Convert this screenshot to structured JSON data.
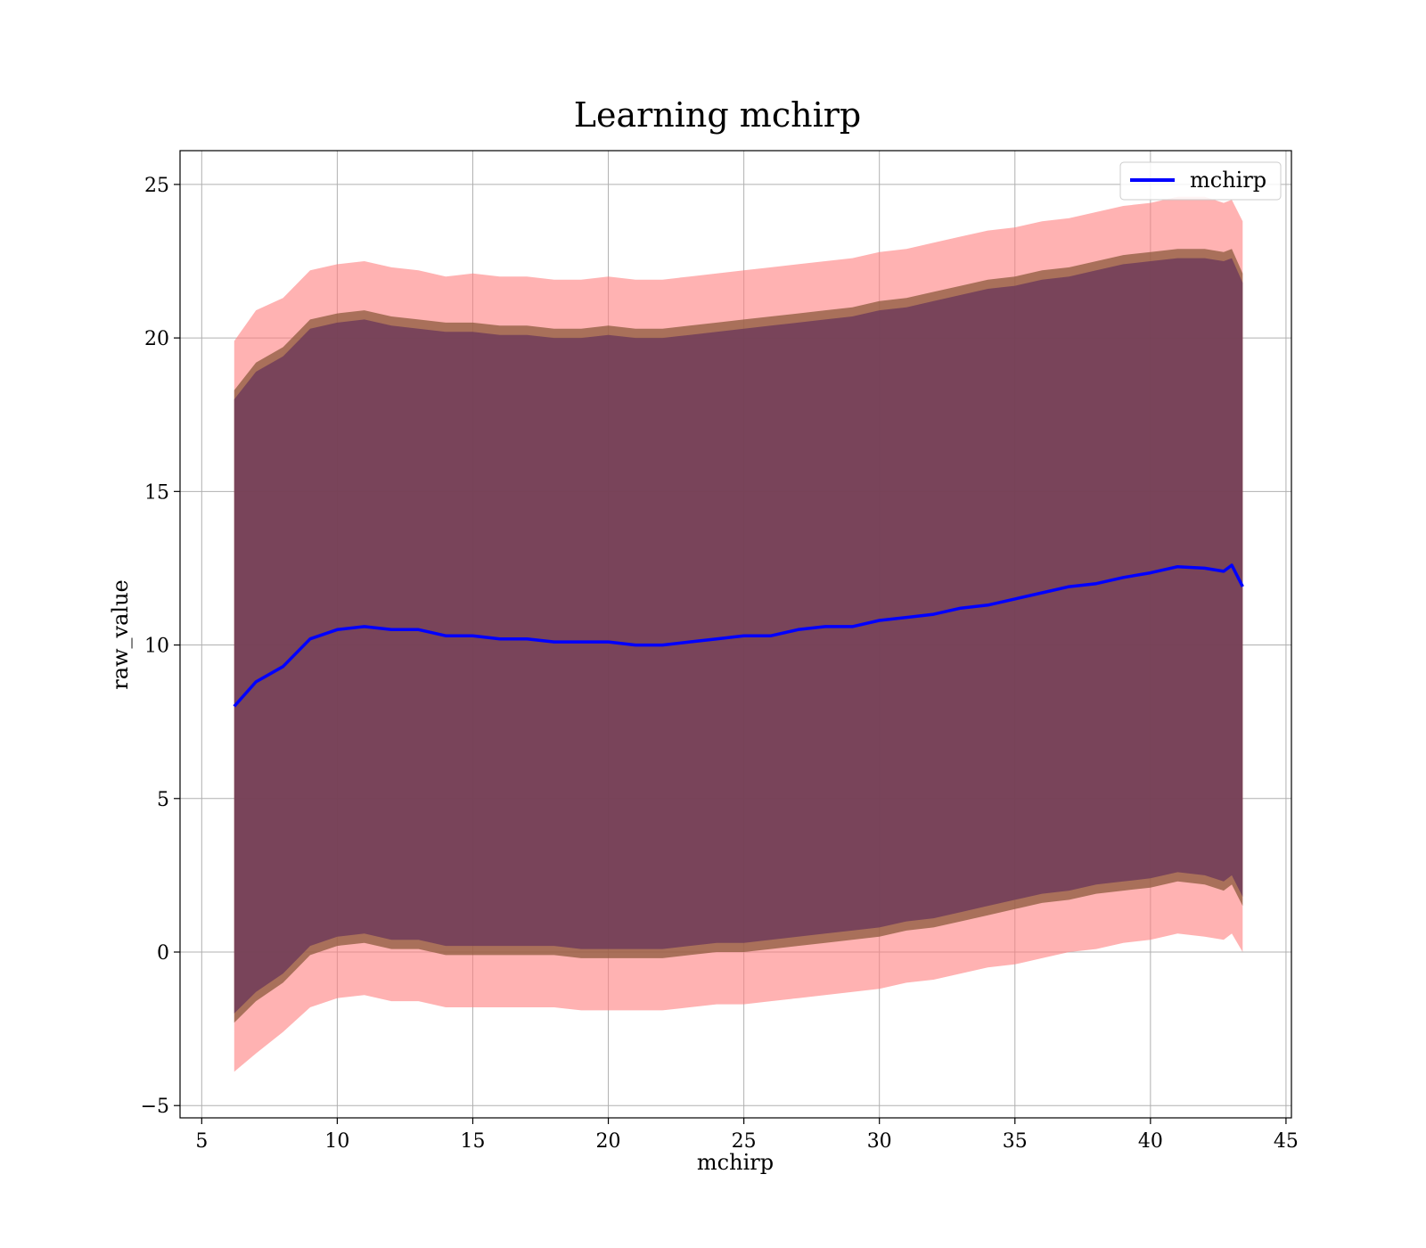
{
  "chart_data": {
    "type": "area",
    "title": "Learning mchirp",
    "xlabel": "mchirp",
    "ylabel": "raw_value",
    "xlim": [
      4.2,
      45.2
    ],
    "ylim": [
      -5.4,
      26.1
    ],
    "xticks": [
      5,
      10,
      15,
      20,
      25,
      30,
      35,
      40,
      45
    ],
    "xtick_labels": [
      "5",
      "10",
      "15",
      "20",
      "25",
      "30",
      "35",
      "40",
      "45"
    ],
    "yticks": [
      -5,
      0,
      5,
      10,
      15,
      20,
      25
    ],
    "ytick_labels": [
      "−5",
      "0",
      "5",
      "10",
      "15",
      "20",
      "25"
    ],
    "grid": true,
    "legend_position": "top-right",
    "legend": [
      "mchirp"
    ],
    "x": [
      6.2,
      7,
      8,
      9,
      10,
      11,
      12,
      13,
      14,
      15,
      16,
      17,
      18,
      19,
      20,
      21,
      22,
      23,
      24,
      25,
      26,
      27,
      28,
      29,
      30,
      31,
      32,
      33,
      34,
      35,
      36,
      37,
      38,
      39,
      40,
      41,
      42,
      42.7,
      43,
      43.4
    ],
    "series": [
      {
        "name": "mchirp",
        "color": "#0000ff",
        "values": [
          8.0,
          8.8,
          9.3,
          10.2,
          10.5,
          10.6,
          10.5,
          10.5,
          10.3,
          10.3,
          10.2,
          10.2,
          10.1,
          10.1,
          10.1,
          10.0,
          10.0,
          10.1,
          10.2,
          10.3,
          10.3,
          10.5,
          10.6,
          10.6,
          10.8,
          10.9,
          11.0,
          11.2,
          11.3,
          11.5,
          11.7,
          11.9,
          12.0,
          12.2,
          12.35,
          12.55,
          12.5,
          12.4,
          12.6,
          11.9
        ]
      }
    ],
    "bands": [
      {
        "level": "outer",
        "color": "#ff7f7f",
        "upper": [
          19.9,
          20.9,
          21.3,
          22.2,
          22.4,
          22.5,
          22.3,
          22.2,
          22.0,
          22.1,
          22.0,
          22.0,
          21.9,
          21.9,
          22.0,
          21.9,
          21.9,
          22.0,
          22.1,
          22.2,
          22.3,
          22.4,
          22.5,
          22.6,
          22.8,
          22.9,
          23.1,
          23.3,
          23.5,
          23.6,
          23.8,
          23.9,
          24.1,
          24.3,
          24.4,
          24.6,
          24.6,
          24.4,
          24.5,
          23.8
        ],
        "lower": [
          -3.9,
          -3.3,
          -2.6,
          -1.8,
          -1.5,
          -1.4,
          -1.6,
          -1.6,
          -1.8,
          -1.8,
          -1.8,
          -1.8,
          -1.8,
          -1.9,
          -1.9,
          -1.9,
          -1.9,
          -1.8,
          -1.7,
          -1.7,
          -1.6,
          -1.5,
          -1.4,
          -1.3,
          -1.2,
          -1.0,
          -0.9,
          -0.7,
          -0.5,
          -0.4,
          -0.2,
          0.0,
          0.1,
          0.3,
          0.4,
          0.6,
          0.5,
          0.4,
          0.6,
          0.0
        ]
      },
      {
        "level": "middle",
        "color": "#8c5a3c",
        "upper": [
          18.3,
          19.2,
          19.7,
          20.6,
          20.8,
          20.9,
          20.7,
          20.6,
          20.5,
          20.5,
          20.4,
          20.4,
          20.3,
          20.3,
          20.4,
          20.3,
          20.3,
          20.4,
          20.5,
          20.6,
          20.7,
          20.8,
          20.9,
          21.0,
          21.2,
          21.3,
          21.5,
          21.7,
          21.9,
          22.0,
          22.2,
          22.3,
          22.5,
          22.7,
          22.8,
          22.9,
          22.9,
          22.8,
          22.9,
          22.1
        ],
        "lower": [
          -2.3,
          -1.6,
          -1.0,
          -0.1,
          0.2,
          0.3,
          0.1,
          0.1,
          -0.1,
          -0.1,
          -0.1,
          -0.1,
          -0.1,
          -0.2,
          -0.2,
          -0.2,
          -0.2,
          -0.1,
          0.0,
          0.0,
          0.1,
          0.2,
          0.3,
          0.4,
          0.5,
          0.7,
          0.8,
          1.0,
          1.2,
          1.4,
          1.6,
          1.7,
          1.9,
          2.0,
          2.1,
          2.3,
          2.2,
          2.0,
          2.2,
          1.5
        ]
      },
      {
        "level": "inner",
        "color": "#6d3a5a",
        "upper": [
          18.0,
          18.9,
          19.4,
          20.3,
          20.5,
          20.6,
          20.4,
          20.3,
          20.2,
          20.2,
          20.1,
          20.1,
          20.0,
          20.0,
          20.1,
          20.0,
          20.0,
          20.1,
          20.2,
          20.3,
          20.4,
          20.5,
          20.6,
          20.7,
          20.9,
          21.0,
          21.2,
          21.4,
          21.6,
          21.7,
          21.9,
          22.0,
          22.2,
          22.4,
          22.5,
          22.6,
          22.6,
          22.5,
          22.6,
          21.8
        ],
        "lower": [
          -2.0,
          -1.3,
          -0.7,
          0.2,
          0.5,
          0.6,
          0.4,
          0.4,
          0.2,
          0.2,
          0.2,
          0.2,
          0.2,
          0.1,
          0.1,
          0.1,
          0.1,
          0.2,
          0.3,
          0.3,
          0.4,
          0.5,
          0.6,
          0.7,
          0.8,
          1.0,
          1.1,
          1.3,
          1.5,
          1.7,
          1.9,
          2.0,
          2.2,
          2.3,
          2.4,
          2.6,
          2.5,
          2.3,
          2.5,
          1.8
        ]
      }
    ]
  }
}
